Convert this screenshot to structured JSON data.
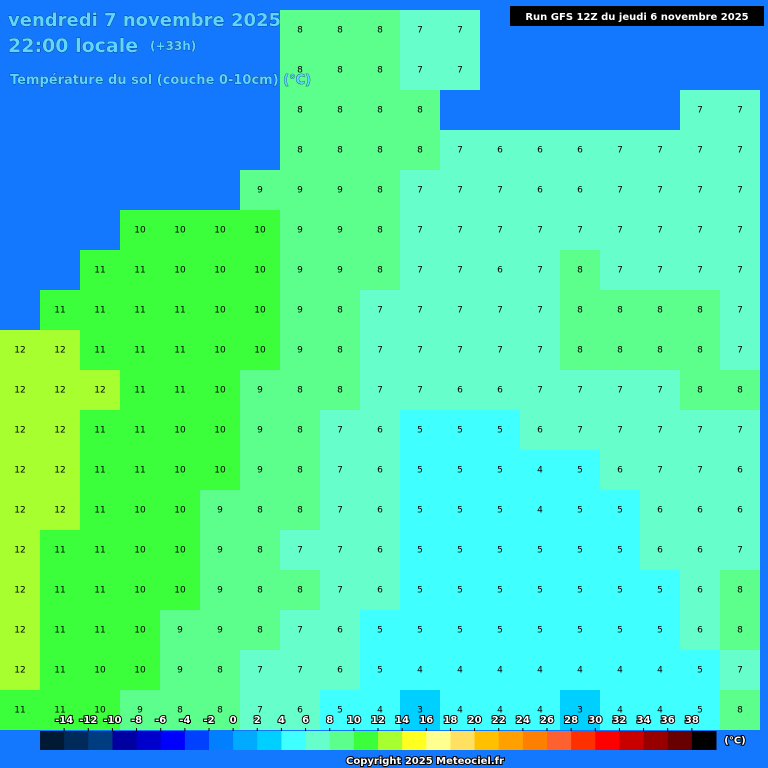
{
  "header": {
    "date": "vendredi 7 novembre 2025",
    "time": "22:00 locale",
    "lead": "(+33h)",
    "parameter": "Température du sol (couche 0-10cm) (°C)",
    "run": "Run GFS 12Z du jeudi 6 novembre 2025"
  },
  "map": {
    "sea_color": "#1478ff",
    "grid": {
      "rows": [
        [
          null,
          null,
          null,
          null,
          null,
          null,
          null,
          8,
          8,
          8,
          7,
          7,
          null,
          null,
          null,
          null,
          null,
          null,
          null
        ],
        [
          null,
          null,
          null,
          null,
          null,
          null,
          null,
          8,
          8,
          8,
          7,
          7,
          null,
          null,
          null,
          null,
          null,
          null,
          null
        ],
        [
          null,
          null,
          null,
          null,
          null,
          null,
          null,
          8,
          8,
          8,
          8,
          null,
          null,
          null,
          null,
          null,
          null,
          7,
          7
        ],
        [
          null,
          null,
          null,
          null,
          null,
          null,
          null,
          8,
          8,
          8,
          8,
          7,
          6,
          6,
          6,
          7,
          7,
          7,
          7
        ],
        [
          null,
          null,
          null,
          null,
          null,
          null,
          9,
          9,
          9,
          8,
          7,
          7,
          7,
          6,
          6,
          7,
          7,
          7,
          7
        ],
        [
          null,
          null,
          null,
          10,
          10,
          10,
          10,
          9,
          9,
          8,
          7,
          7,
          7,
          7,
          7,
          7,
          7,
          7,
          7
        ],
        [
          null,
          null,
          11,
          11,
          10,
          10,
          10,
          9,
          9,
          8,
          7,
          7,
          6,
          7,
          8,
          7,
          7,
          7,
          7
        ],
        [
          null,
          11,
          11,
          11,
          11,
          10,
          10,
          9,
          8,
          7,
          7,
          7,
          7,
          7,
          8,
          8,
          8,
          8,
          7
        ],
        [
          12,
          12,
          11,
          11,
          11,
          10,
          10,
          9,
          8,
          7,
          7,
          7,
          7,
          7,
          8,
          8,
          8,
          8,
          7
        ],
        [
          12,
          12,
          12,
          11,
          11,
          10,
          9,
          8,
          8,
          7,
          7,
          6,
          6,
          7,
          7,
          7,
          7,
          8,
          8
        ],
        [
          12,
          12,
          11,
          11,
          10,
          10,
          9,
          8,
          7,
          6,
          5,
          5,
          5,
          6,
          7,
          7,
          7,
          7,
          7
        ],
        [
          12,
          12,
          11,
          11,
          10,
          10,
          9,
          8,
          7,
          6,
          5,
          5,
          5,
          4,
          5,
          6,
          7,
          7,
          6
        ],
        [
          12,
          12,
          11,
          10,
          10,
          9,
          8,
          8,
          7,
          6,
          5,
          5,
          5,
          4,
          5,
          5,
          6,
          6,
          6
        ],
        [
          12,
          11,
          11,
          10,
          10,
          9,
          8,
          7,
          7,
          6,
          5,
          5,
          5,
          5,
          5,
          5,
          6,
          6,
          7
        ],
        [
          12,
          11,
          11,
          10,
          10,
          9,
          8,
          8,
          7,
          6,
          5,
          5,
          5,
          5,
          5,
          5,
          5,
          6,
          8
        ],
        [
          12,
          11,
          11,
          10,
          9,
          9,
          8,
          7,
          6,
          5,
          5,
          5,
          5,
          5,
          5,
          5,
          5,
          6,
          8
        ],
        [
          12,
          11,
          10,
          10,
          9,
          8,
          7,
          7,
          6,
          5,
          4,
          4,
          4,
          4,
          4,
          4,
          4,
          5,
          7
        ],
        [
          11,
          11,
          10,
          9,
          8,
          8,
          7,
          6,
          5,
          4,
          3,
          4,
          4,
          4,
          3,
          4,
          4,
          5,
          8
        ]
      ]
    }
  },
  "legend": {
    "ticks": [
      -14,
      -12,
      -10,
      -8,
      -6,
      -4,
      -2,
      0,
      2,
      4,
      6,
      8,
      10,
      12,
      14,
      16,
      18,
      20,
      22,
      24,
      26,
      28,
      30,
      32,
      34,
      36,
      38
    ],
    "colors": [
      "#001a33",
      "#002a5a",
      "#003d80",
      "#0000a0",
      "#0000cc",
      "#0000ff",
      "#0040ff",
      "#0080ff",
      "#00aaff",
      "#00d0ff",
      "#40ffff",
      "#66ffcc",
      "#5cff8c",
      "#3cff3c",
      "#a8ff30",
      "#ffff20",
      "#ffff90",
      "#ffe060",
      "#ffc000",
      "#ffa000",
      "#ff8000",
      "#ff6030",
      "#ff3000",
      "#ff0000",
      "#c80000",
      "#980000",
      "#680000",
      "#000000"
    ],
    "unit": "(°C)"
  },
  "footer": {
    "copyright": "Copyright 2025 Meteociel.fr"
  }
}
